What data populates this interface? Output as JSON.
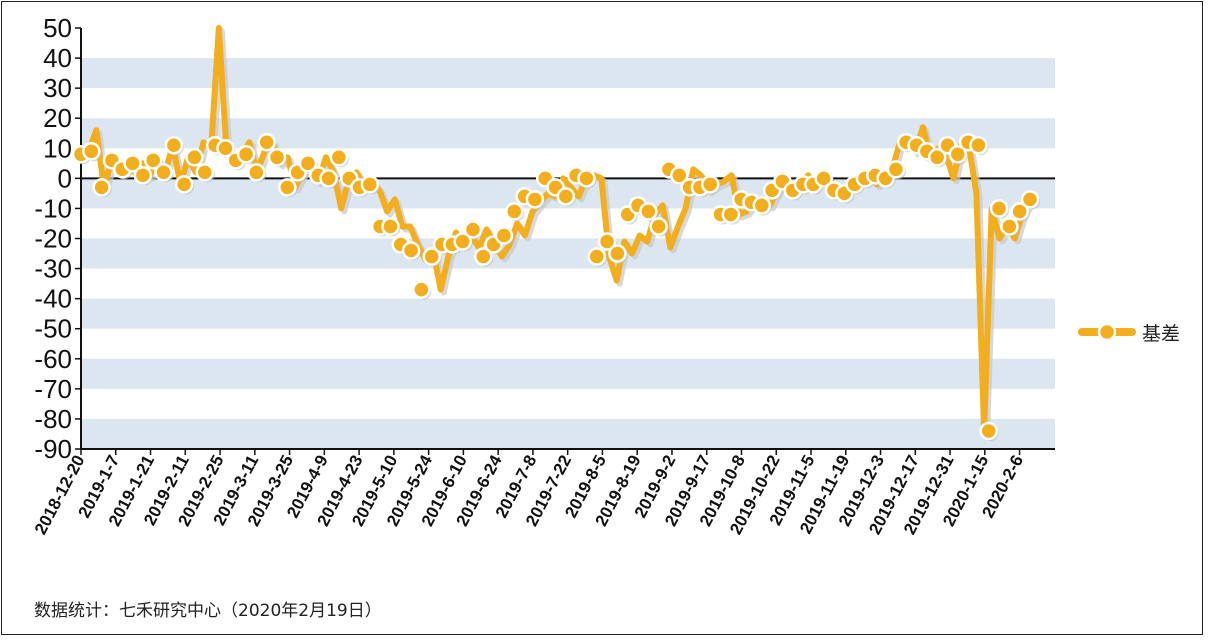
{
  "chart_data": {
    "type": "line",
    "title": "",
    "xlabel": "",
    "ylabel": "",
    "ylim": [
      -90,
      50
    ],
    "yticks": [
      50,
      40,
      30,
      20,
      10,
      0,
      -10,
      -20,
      -30,
      -40,
      -50,
      -60,
      -70,
      -80,
      -90
    ],
    "grid": "alternating horizontal bands",
    "legend": "right",
    "colors": {
      "line": "#F2AE1C",
      "marker_fill": "#F2AE1C",
      "marker_edge": "#ffffff",
      "band": "#DCE6F1",
      "zero_line": "#111111"
    },
    "x_labels": [
      "2018-12-20",
      "2019-1-7",
      "2019-1-21",
      "2019-2-11",
      "2019-2-25",
      "2019-3-11",
      "2019-3-25",
      "2019-4-9",
      "2019-4-23",
      "2019-5-10",
      "2019-5-24",
      "2019-6-10",
      "2019-6-24",
      "2019-7-8",
      "2019-7-22",
      "2019-8-5",
      "2019-8-19",
      "2019-9-2",
      "2019-9-17",
      "2019-10-8",
      "2019-10-22",
      "2019-11-5",
      "2019-11-19",
      "2019-12-3",
      "2019-12-17",
      "2019-12-31",
      "2020-1-15",
      "2020-2-6"
    ],
    "series": [
      {
        "name": "基差",
        "values": [
          8,
          9,
          16,
          -3,
          6,
          3,
          5,
          2,
          5,
          1,
          6,
          2,
          11,
          -2,
          7,
          2,
          12,
          10,
          50,
          10,
          6,
          8,
          12,
          2,
          9,
          12,
          5,
          7,
          -3,
          2,
          5,
          -1,
          7,
          2,
          -10,
          0,
          2,
          -3,
          -1,
          -4,
          -11,
          -7,
          -16,
          -16,
          -22,
          -27,
          -24,
          -37,
          -26,
          -18,
          -22,
          -19,
          -23,
          -17,
          -22,
          -26,
          -22,
          -15,
          -19,
          -11,
          -8,
          -5,
          -6,
          0,
          -3,
          -6,
          0,
          1,
          0,
          -26,
          -34,
          -21,
          -25,
          -19,
          -21,
          -12,
          -9,
          -23,
          -16,
          -10,
          3,
          1,
          -4,
          -2,
          -1,
          1,
          -12,
          -11,
          -7,
          -8,
          -9,
          -4,
          -1,
          -4,
          -2,
          1,
          -2,
          0,
          -1,
          -4,
          -5,
          -2,
          0,
          1,
          -2,
          0,
          3,
          12,
          12,
          9,
          17,
          7,
          10,
          8,
          0,
          11,
          11,
          -5,
          -84,
          -10,
          -20,
          -16,
          -20,
          -12,
          -7
        ],
        "markers": [
          8,
          9,
          -3,
          6,
          3,
          5,
          1,
          6,
          2,
          11,
          -2,
          7,
          2,
          11,
          10,
          6,
          8,
          2,
          12,
          7,
          -3,
          2,
          5,
          1,
          0,
          7,
          0,
          -3,
          -2,
          -16,
          -16,
          -22,
          -24,
          -37,
          -26,
          -22,
          -22,
          -21,
          -17,
          -26,
          -22,
          -19,
          -11,
          -6,
          -7,
          0,
          -3,
          -6,
          1,
          0,
          -26,
          -21,
          -25,
          -12,
          -9,
          -11,
          -16,
          3,
          1,
          -3,
          -3,
          -2,
          -12,
          -12,
          -7,
          -8,
          -9,
          -4,
          -1,
          -4,
          -2,
          -2,
          0,
          -4,
          -5,
          -2,
          0,
          1,
          0,
          3,
          12,
          11,
          9,
          7,
          11,
          8,
          12,
          11,
          -84,
          -10,
          -16,
          -11,
          -7
        ]
      }
    ]
  },
  "legend": {
    "label": "基差"
  },
  "footer": {
    "source": "数据统计：七禾研究中心（2020年2月19日）"
  }
}
